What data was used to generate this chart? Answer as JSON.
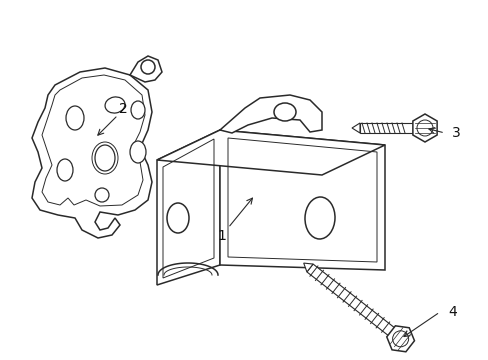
{
  "background_color": "#ffffff",
  "line_color": "#2a2a2a",
  "line_width": 1.1,
  "figsize": [
    4.89,
    3.6
  ],
  "dpi": 100
}
